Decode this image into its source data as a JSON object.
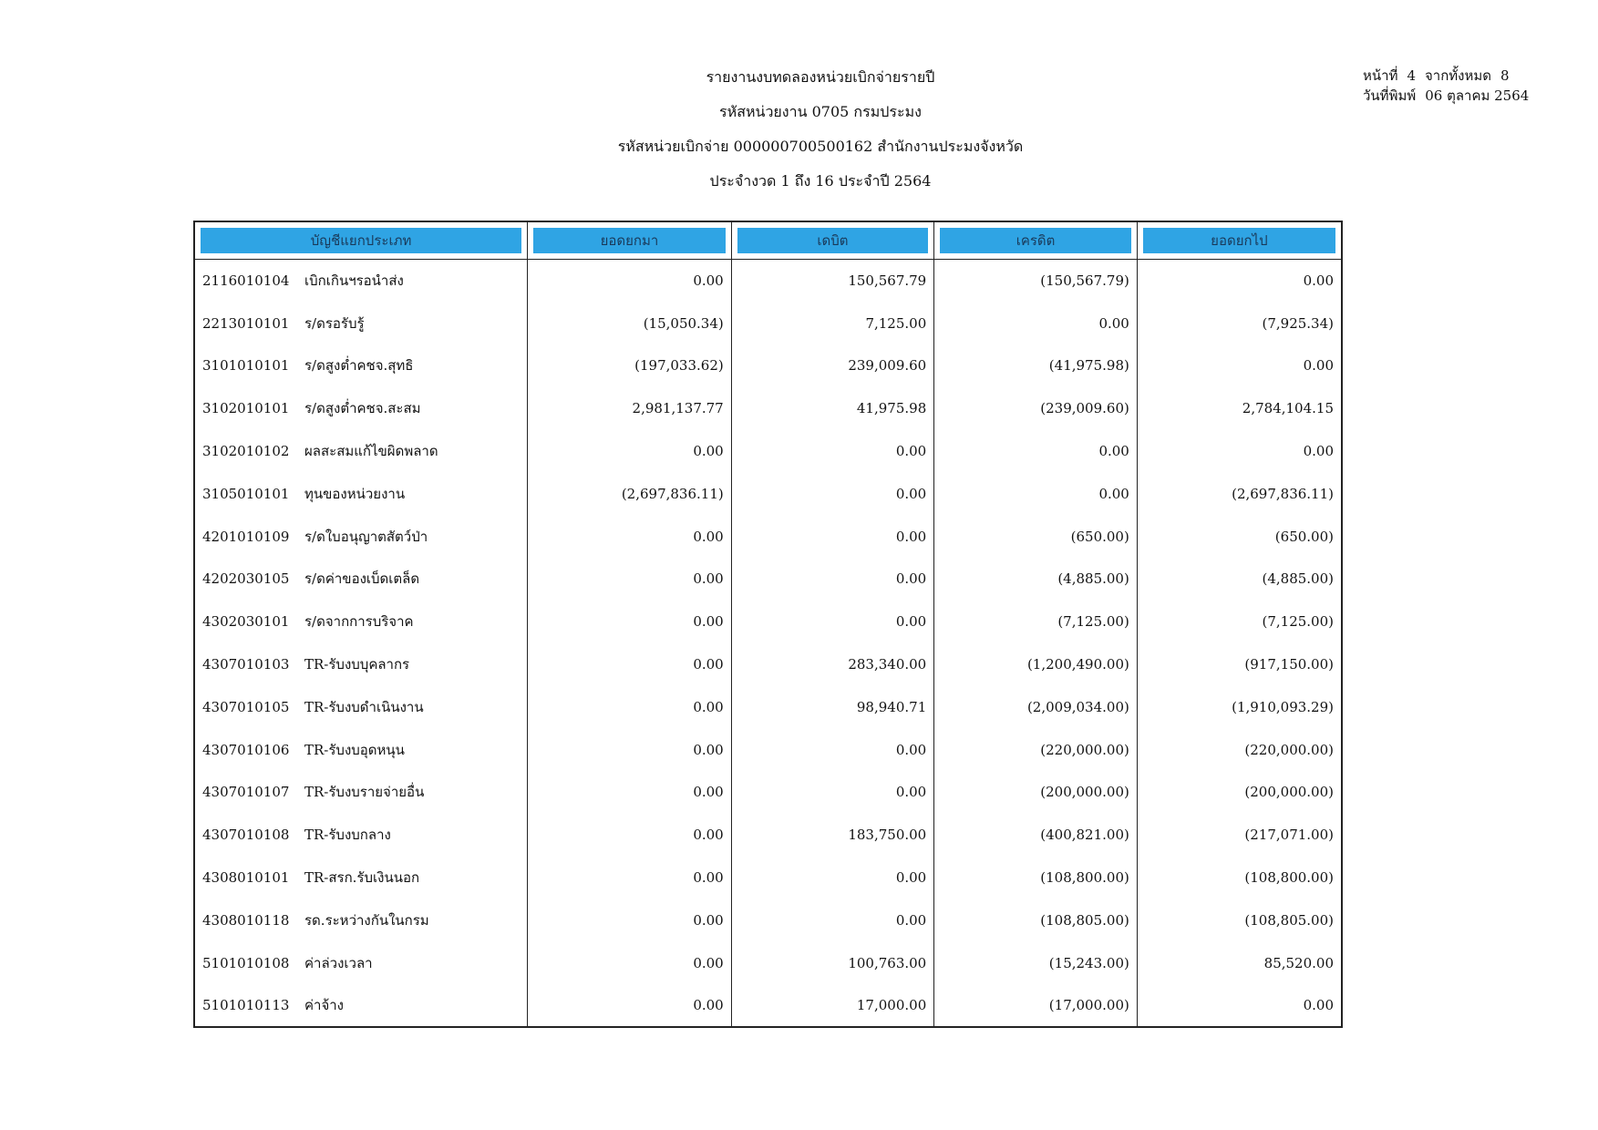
{
  "header": {
    "title": "รายงานงบทดลองหน่วยเบิกจ่ายรายปี",
    "agency": "รหัสหน่วยงาน 0705 กรมประมง",
    "disbursing_unit": "รหัสหน่วยเบิกจ่าย 000000700500162 สำนักงานประมงจังหวัด",
    "period": "ประจำงวด 1 ถึง 16 ประจำปี 2564"
  },
  "page_info": {
    "page_label": "หน้าที่",
    "page_number": "4",
    "total_label": "จากทั้งหมด",
    "total_pages": "8",
    "print_date_label": "วันที่พิมพ์",
    "print_date": "06 ตุลาคม 2564"
  },
  "table": {
    "headers": [
      "บัญชีแยกประเภท",
      "ยอดยกมา",
      "เดบิต",
      "เครดิต",
      "ยอดยกไป"
    ],
    "rows": [
      {
        "code": "2116010104",
        "name": "เบิกเกินฯรอนำส่ง",
        "brought_forward": "0.00",
        "debit": "150,567.79",
        "credit": "(150,567.79)",
        "carried_forward": "0.00"
      },
      {
        "code": "2213010101",
        "name": "ร/ดรอรับรู้",
        "brought_forward": "(15,050.34)",
        "debit": "7,125.00",
        "credit": "0.00",
        "carried_forward": "(7,925.34)"
      },
      {
        "code": "3101010101",
        "name": "ร/ดสูงต่ำคชจ.สุทธิ",
        "brought_forward": "(197,033.62)",
        "debit": "239,009.60",
        "credit": "(41,975.98)",
        "carried_forward": "0.00"
      },
      {
        "code": "3102010101",
        "name": "ร/ดสูงต่ำคชจ.สะสม",
        "brought_forward": "2,981,137.77",
        "debit": "41,975.98",
        "credit": "(239,009.60)",
        "carried_forward": "2,784,104.15"
      },
      {
        "code": "3102010102",
        "name": "ผลสะสมแก้ไขผิดพลาด",
        "brought_forward": "0.00",
        "debit": "0.00",
        "credit": "0.00",
        "carried_forward": "0.00"
      },
      {
        "code": "3105010101",
        "name": "ทุนของหน่วยงาน",
        "brought_forward": "(2,697,836.11)",
        "debit": "0.00",
        "credit": "0.00",
        "carried_forward": "(2,697,836.11)"
      },
      {
        "code": "4201010109",
        "name": "ร/ดใบอนุญาตสัตว์ป่า",
        "brought_forward": "0.00",
        "debit": "0.00",
        "credit": "(650.00)",
        "carried_forward": "(650.00)"
      },
      {
        "code": "4202030105",
        "name": "ร/ดค่าของเบ็ดเตล็ด",
        "brought_forward": "0.00",
        "debit": "0.00",
        "credit": "(4,885.00)",
        "carried_forward": "(4,885.00)"
      },
      {
        "code": "4302030101",
        "name": "ร/ดจากการบริจาค",
        "brought_forward": "0.00",
        "debit": "0.00",
        "credit": "(7,125.00)",
        "carried_forward": "(7,125.00)"
      },
      {
        "code": "4307010103",
        "name": "TR-รับงบบุคลากร",
        "brought_forward": "0.00",
        "debit": "283,340.00",
        "credit": "(1,200,490.00)",
        "carried_forward": "(917,150.00)"
      },
      {
        "code": "4307010105",
        "name": "TR-รับงบดำเนินงาน",
        "brought_forward": "0.00",
        "debit": "98,940.71",
        "credit": "(2,009,034.00)",
        "carried_forward": "(1,910,093.29)"
      },
      {
        "code": "4307010106",
        "name": "TR-รับงบอุดหนุน",
        "brought_forward": "0.00",
        "debit": "0.00",
        "credit": "(220,000.00)",
        "carried_forward": "(220,000.00)"
      },
      {
        "code": "4307010107",
        "name": "TR-รับงบรายจ่ายอื่น",
        "brought_forward": "0.00",
        "debit": "0.00",
        "credit": "(200,000.00)",
        "carried_forward": "(200,000.00)"
      },
      {
        "code": "4307010108",
        "name": "TR-รับงบกลาง",
        "brought_forward": "0.00",
        "debit": "183,750.00",
        "credit": "(400,821.00)",
        "carried_forward": "(217,071.00)"
      },
      {
        "code": "4308010101",
        "name": "TR-สรก.รับเงินนอก",
        "brought_forward": "0.00",
        "debit": "0.00",
        "credit": "(108,800.00)",
        "carried_forward": "(108,800.00)"
      },
      {
        "code": "4308010118",
        "name": "รด.ระหว่างกันในกรม",
        "brought_forward": "0.00",
        "debit": "0.00",
        "credit": "(108,805.00)",
        "carried_forward": "(108,805.00)"
      },
      {
        "code": "5101010108",
        "name": "ค่าล่วงเวลา",
        "brought_forward": "0.00",
        "debit": "100,763.00",
        "credit": "(15,243.00)",
        "carried_forward": "85,520.00"
      },
      {
        "code": "5101010113",
        "name": "ค่าจ้าง",
        "brought_forward": "0.00",
        "debit": "17,000.00",
        "credit": "(17,000.00)",
        "carried_forward": "0.00"
      }
    ]
  },
  "colors": {
    "header_fill": "#2fa4e4",
    "border": "#222222"
  }
}
